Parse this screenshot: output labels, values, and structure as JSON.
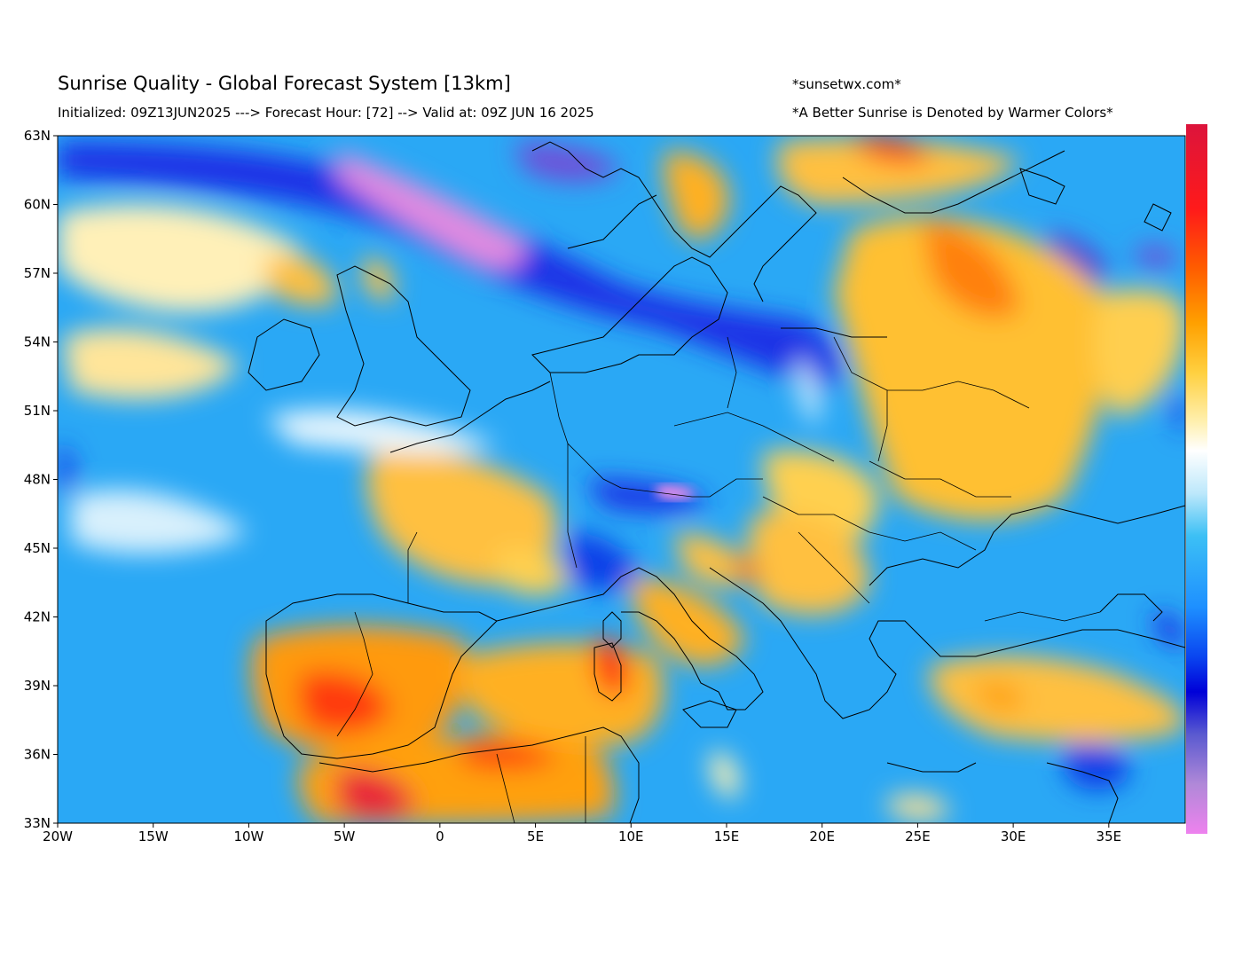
{
  "header": {
    "title": "Sunrise Quality - Global Forecast System [13km]",
    "subtitle": "Initialized: 09Z13JUN2025 ---> Forecast Hour: [72] --> Valid at: 09Z JUN 16 2025",
    "site": "*sunsetwx.com*",
    "note": "*A Better Sunrise is Denoted by Warmer Colors*"
  },
  "map": {
    "projection": "equirectangular",
    "lon_range": [
      -20,
      39
    ],
    "lat_range": [
      33,
      63
    ],
    "x_tick_labels": [
      "20W",
      "15W",
      "10W",
      "5W",
      "0",
      "5E",
      "10E",
      "15E",
      "20E",
      "25E",
      "30E",
      "35E"
    ],
    "y_tick_labels": [
      "63N",
      "60N",
      "57N",
      "54N",
      "51N",
      "48N",
      "45N",
      "42N",
      "39N",
      "36N",
      "33N"
    ],
    "colorbar": {
      "orientation": "vertical",
      "colors_top_to_bottom": [
        "#dc143c",
        "#ff1a1a",
        "#ff4500",
        "#ff8c00",
        "#ffb000",
        "#ffd24d",
        "#fff0b0",
        "#ffffff",
        "#bde8fb",
        "#3cc0f5",
        "#1e90ff",
        "#0a46f0",
        "#0000d0",
        "#5050d0",
        "#a080d8",
        "#ee82ee"
      ],
      "meaning": "Warmer colors = better sunrise"
    },
    "color_regions": [
      {
        "name": "Norwegian Sea violet band",
        "color": "#e08ae0"
      },
      {
        "name": "Northern Sea / Baltic deep blue",
        "color": "#1428e0"
      },
      {
        "name": "Western Russia / Belarus orange",
        "color": "#ffc020"
      },
      {
        "name": "Iberia & North Africa red-orange",
        "color": "#ff5010"
      },
      {
        "name": "Sardinia red",
        "color": "#ff2010"
      },
      {
        "name": "Central Europe medium blue",
        "color": "#1e90ff"
      },
      {
        "name": "Atlantic light blue",
        "color": "#3cc0f5"
      }
    ]
  }
}
